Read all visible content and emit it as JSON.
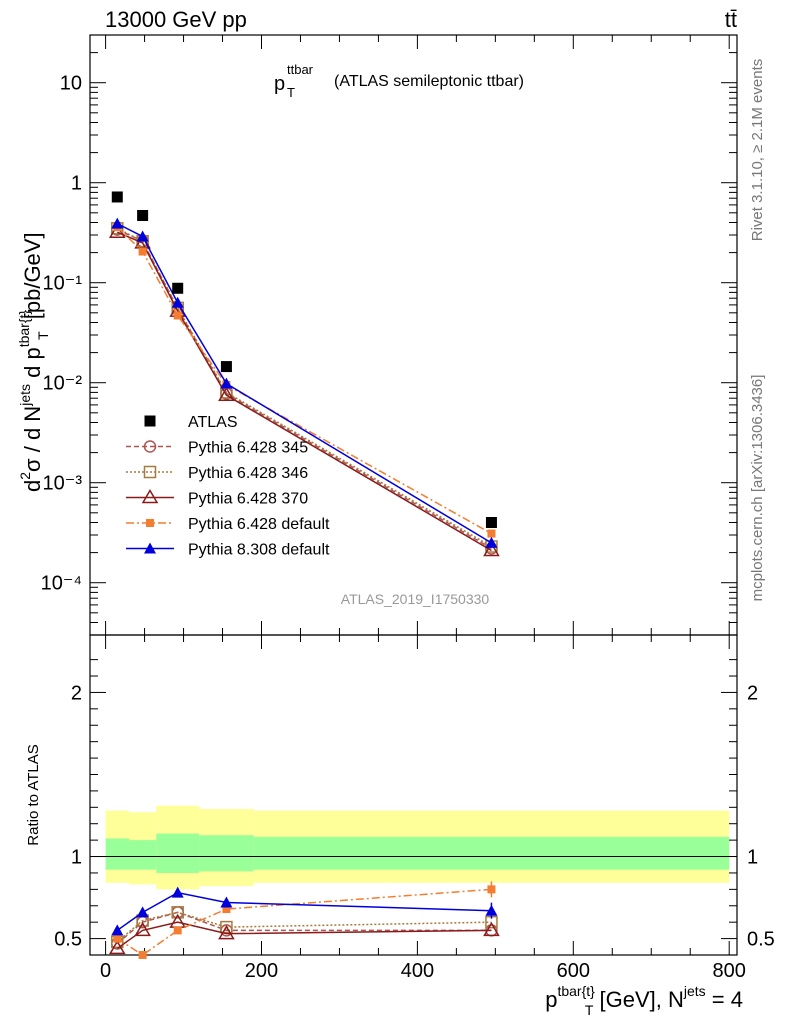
{
  "header": {
    "energy_label": "13000 GeV pp",
    "process_label": "tt̄",
    "title_main": "p",
    "title_sup": "ttbar",
    "title_sub": "T",
    "title_suffix": "(ATLAS semileptonic ttbar)",
    "analysis_id": "ATLAS_2019_I1750330",
    "rivet_label": "Rivet 3.1.10, ≥ 2.1M events",
    "mcplots_label": "mcplots.cern.ch [arXiv:1306.3436]"
  },
  "colors": {
    "atlas": "#000000",
    "p345": "#b15451",
    "p346": "#a57b3e",
    "p370": "#8b1a1a",
    "p6def": "#f47d30",
    "p8def": "#0000dd",
    "band_inner": "#99ff99",
    "band_outer": "#ffff99"
  },
  "chart_data": [
    {
      "type": "scatter",
      "yscale": "log",
      "ylim": [
        3e-05,
        30
      ],
      "xlim": [
        -20,
        810
      ],
      "ytick_labels": [
        "10⁻⁴",
        "10⁻³",
        "10⁻²",
        "10⁻¹",
        "1",
        "10"
      ],
      "ylabel_parts": {
        "a": "d",
        "a_sup": "2",
        "b": "σ  /  d N",
        "b_sup": "jets",
        "c": " d p",
        "c_sup": "tbar{t}",
        "c_sub": "T",
        "d": " [pb/GeV]"
      },
      "x": [
        15,
        47.5,
        92.5,
        155,
        495
      ],
      "series": [
        {
          "name": "ATLAS",
          "values": [
            0.72,
            0.47,
            0.088,
            0.0145,
            0.0004
          ]
        },
        {
          "name": "Pythia 6.428 345",
          "values": [
            0.34,
            0.26,
            0.055,
            0.0078,
            0.00022
          ]
        },
        {
          "name": "Pythia 6.428 346",
          "values": [
            0.35,
            0.26,
            0.056,
            0.008,
            0.00023
          ]
        },
        {
          "name": "Pythia 6.428 370",
          "values": [
            0.32,
            0.25,
            0.052,
            0.0075,
            0.00021
          ]
        },
        {
          "name": "Pythia 6.428 default",
          "values": [
            0.36,
            0.205,
            0.047,
            0.0095,
            0.00031
          ]
        },
        {
          "name": "Pythia 8.308 default",
          "values": [
            0.39,
            0.29,
            0.063,
            0.0098,
            0.00025
          ]
        }
      ]
    },
    {
      "type": "line",
      "ylim": [
        0.4,
        2.35
      ],
      "xlim": [
        -20,
        810
      ],
      "ylabel": "Ratio to ATLAS",
      "xlabel_parts": {
        "a": "p",
        "a_sup": "tbar{t}",
        "a_sub": "T",
        "b": " [GeV], N",
        "b_sup": "jets",
        "c": " = 4"
      },
      "xtick_labels": [
        "0",
        "200",
        "400",
        "600",
        "800"
      ],
      "ytick_labels": [
        "0.5",
        "1",
        "2"
      ],
      "band_edges": [
        0,
        30,
        65,
        120,
        190,
        800
      ],
      "band_inner": [
        [
          0.92,
          1.11
        ],
        [
          0.92,
          1.1
        ],
        [
          0.9,
          1.14
        ],
        [
          0.91,
          1.13
        ],
        [
          0.92,
          1.12
        ]
      ],
      "band_outer": [
        [
          0.84,
          1.28
        ],
        [
          0.83,
          1.27
        ],
        [
          0.8,
          1.31
        ],
        [
          0.82,
          1.29
        ],
        [
          0.84,
          1.28
        ]
      ],
      "x": [
        15,
        47.5,
        92.5,
        155,
        495
      ],
      "series": [
        {
          "name": "Pythia 6.428 345",
          "values": [
            0.47,
            0.6,
            0.66,
            0.55,
            0.55
          ]
        },
        {
          "name": "Pythia 6.428 346",
          "values": [
            0.48,
            0.61,
            0.66,
            0.57,
            0.6
          ]
        },
        {
          "name": "Pythia 6.428 370",
          "values": [
            0.44,
            0.55,
            0.6,
            0.53,
            0.55
          ]
        },
        {
          "name": "Pythia 6.428 default",
          "values": [
            0.5,
            0.4,
            0.55,
            0.68,
            0.8
          ]
        },
        {
          "name": "Pythia 8.308 default",
          "values": [
            0.55,
            0.66,
            0.78,
            0.72,
            0.67
          ]
        }
      ]
    }
  ]
}
